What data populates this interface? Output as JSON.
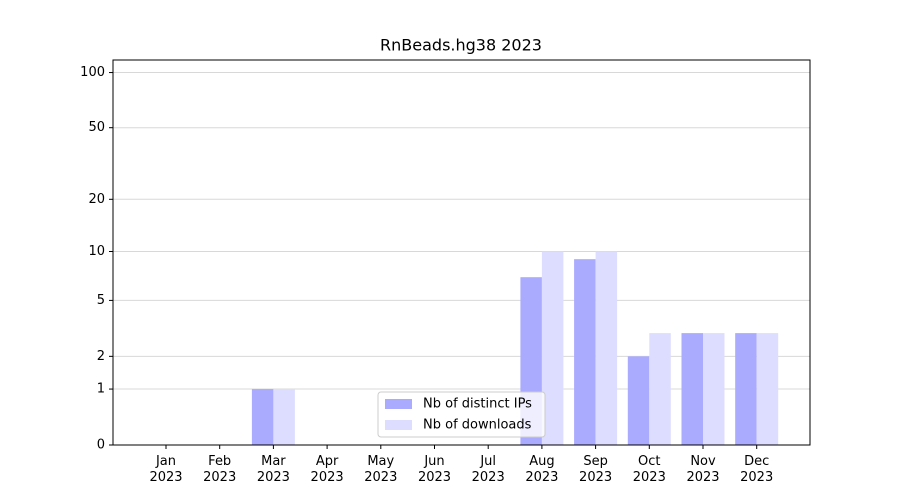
{
  "chart_data": {
    "type": "bar",
    "title": "RnBeads.hg38 2023",
    "y_scale": "log1p",
    "categories": [
      "Jan 2023",
      "Feb 2023",
      "Mar 2023",
      "Apr 2023",
      "May 2023",
      "Jun 2023",
      "Jul 2023",
      "Aug 2023",
      "Sep 2023",
      "Oct 2023",
      "Nov 2023",
      "Dec 2023"
    ],
    "series": [
      {
        "name": "Nb of distinct IPs",
        "color": "#aaaaff",
        "values": [
          0,
          0,
          1,
          0,
          0,
          0,
          0,
          7,
          9,
          2,
          3,
          3
        ]
      },
      {
        "name": "Nb of downloads",
        "color": "#ddddff",
        "values": [
          0,
          0,
          1,
          0,
          0,
          0,
          0,
          10,
          10,
          3,
          3,
          3
        ]
      }
    ],
    "ylim": [
      0,
      117
    ],
    "yticks": [
      0,
      1,
      2,
      5,
      10,
      20,
      50,
      100
    ],
    "grid": true,
    "legend": "lower center"
  }
}
